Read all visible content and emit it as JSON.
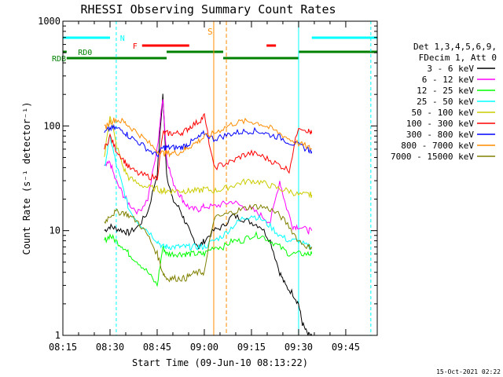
{
  "chart_data": {
    "type": "line",
    "title": "RHESSI Observing Summary Count Rates",
    "xlabel": "Start Time (09-Jun-10 08:13:22)",
    "ylabel": "Count Rate (s⁻¹ detector⁻¹)",
    "yscale": "log",
    "ylim": [
      1,
      1000
    ],
    "xlim_min": [
      8.25,
      9.917
    ],
    "x_ticks": [
      "08:15",
      "08:30",
      "08:45",
      "09:00",
      "09:15",
      "09:30",
      "09:45"
    ],
    "y_ticks": [
      "1",
      "10",
      "100",
      "1000"
    ],
    "legend_header": [
      "Det 1,3,4,5,6,9,",
      "FDecim 1, Att 0"
    ],
    "legend_position": "right",
    "timestamp": "15-Oct-2021 02:22",
    "series": [
      {
        "name": "3 - 6 keV",
        "color": "#000000",
        "x": [
          8.47,
          8.5,
          8.53,
          8.57,
          8.6,
          8.65,
          8.7,
          8.75,
          8.78,
          8.8,
          8.83,
          8.87,
          8.9,
          8.93,
          8.97,
          9.0,
          9.05,
          9.1,
          9.15,
          9.2,
          9.25,
          9.3,
          9.35,
          9.4,
          9.43,
          9.47,
          9.5,
          9.52,
          9.55,
          9.57
        ],
        "y": [
          10,
          11,
          10.5,
          10,
          9.5,
          11,
          15,
          35,
          200,
          35,
          20,
          16,
          12,
          9,
          7,
          8,
          10,
          11,
          14,
          13,
          12,
          11,
          8,
          4,
          3,
          2.5,
          2,
          1.3,
          1,
          1
        ]
      },
      {
        "name": "6 - 12 keV",
        "color": "#ff00ff",
        "x": [
          8.47,
          8.5,
          8.53,
          8.57,
          8.6,
          8.65,
          8.7,
          8.75,
          8.78,
          8.8,
          8.83,
          8.87,
          8.9,
          8.93,
          8.97,
          9.0,
          9.05,
          9.1,
          9.15,
          9.2,
          9.25,
          9.3,
          9.35,
          9.4,
          9.43,
          9.47,
          9.5,
          9.55,
          9.57
        ],
        "y": [
          40,
          45,
          30,
          22,
          18,
          15,
          20,
          60,
          190,
          50,
          30,
          22,
          18,
          16,
          16,
          17,
          17,
          18,
          19,
          17,
          16,
          14,
          12,
          30,
          18,
          11,
          11,
          10,
          10
        ]
      },
      {
        "name": "12 - 25 keV",
        "color": "#00ff00",
        "x": [
          8.47,
          8.5,
          8.53,
          8.57,
          8.6,
          8.65,
          8.7,
          8.75,
          8.78,
          8.8,
          8.83,
          8.87,
          8.9,
          8.93,
          8.97,
          9.0,
          9.05,
          9.1,
          9.15,
          9.2,
          9.25,
          9.3,
          9.35,
          9.4,
          9.45,
          9.5,
          9.55,
          9.57
        ],
        "y": [
          8,
          9,
          8,
          7,
          6,
          5,
          4,
          3,
          7,
          6,
          6,
          6,
          6,
          6,
          6,
          6,
          7,
          7,
          8,
          8,
          9,
          9,
          8,
          7,
          6,
          6,
          6,
          6
        ]
      },
      {
        "name": "25 - 50 keV",
        "color": "#00ffff",
        "x": [
          8.47,
          8.5,
          8.53,
          8.57,
          8.6,
          8.65,
          8.7,
          8.75,
          8.78,
          8.8,
          8.83,
          8.87,
          8.9,
          8.93,
          8.97,
          9.0,
          9.05,
          9.1,
          9.15,
          9.2,
          9.25,
          9.3,
          9.35,
          9.4,
          9.45,
          9.5,
          9.55,
          9.57
        ],
        "y": [
          40,
          80,
          45,
          25,
          16,
          12,
          10,
          8,
          7,
          7,
          7,
          7,
          7,
          7,
          7,
          7,
          8,
          9,
          11,
          13,
          14,
          13,
          11,
          9,
          8,
          8,
          7,
          7
        ]
      },
      {
        "name": "50 - 100 keV",
        "color": "#cccc00",
        "x": [
          8.47,
          8.5,
          8.53,
          8.57,
          8.6,
          8.65,
          8.7,
          8.75,
          8.78,
          8.8,
          8.83,
          8.87,
          8.9,
          8.93,
          8.97,
          9.0,
          9.05,
          9.1,
          9.15,
          9.2,
          9.25,
          9.3,
          9.35,
          9.4,
          9.45,
          9.5,
          9.55,
          9.57
        ],
        "y": [
          50,
          130,
          70,
          40,
          32,
          28,
          26,
          25,
          24,
          24,
          24,
          24,
          24,
          24,
          24,
          25,
          24,
          25,
          27,
          29,
          30,
          29,
          27,
          25,
          24,
          22,
          22,
          22
        ]
      },
      {
        "name": "100 - 300 keV",
        "color": "#ff0000",
        "x": [
          8.47,
          8.5,
          8.53,
          8.57,
          8.6,
          8.65,
          8.7,
          8.75,
          8.78,
          8.8,
          8.83,
          8.87,
          8.9,
          8.93,
          8.97,
          9.0,
          9.05,
          9.1,
          9.15,
          9.2,
          9.25,
          9.3,
          9.35,
          9.4,
          9.45,
          9.5,
          9.55,
          9.57
        ],
        "y": [
          60,
          80,
          60,
          48,
          40,
          35,
          33,
          32,
          85,
          85,
          85,
          85,
          90,
          100,
          110,
          125,
          40,
          43,
          46,
          52,
          55,
          52,
          47,
          42,
          38,
          100,
          90,
          85
        ]
      },
      {
        "name": "300 - 800 keV",
        "color": "#0000ff",
        "x": [
          8.47,
          8.5,
          8.53,
          8.57,
          8.6,
          8.65,
          8.7,
          8.75,
          8.78,
          8.8,
          8.83,
          8.87,
          8.9,
          8.93,
          8.97,
          9.0,
          9.05,
          9.1,
          9.15,
          9.2,
          9.25,
          9.3,
          9.35,
          9.4,
          9.45,
          9.5,
          9.55,
          9.57
        ],
        "y": [
          85,
          95,
          95,
          90,
          80,
          70,
          60,
          52,
          62,
          62,
          62,
          62,
          65,
          70,
          77,
          85,
          75,
          80,
          85,
          88,
          90,
          88,
          82,
          78,
          70,
          65,
          60,
          57
        ]
      },
      {
        "name": "800 - 7000 keV",
        "color": "#ff8c00",
        "x": [
          8.47,
          8.5,
          8.53,
          8.57,
          8.6,
          8.65,
          8.7,
          8.75,
          8.78,
          8.8,
          8.83,
          8.87,
          8.9,
          8.93,
          8.97,
          9.0,
          9.05,
          9.1,
          9.15,
          9.2,
          9.25,
          9.3,
          9.35,
          9.4,
          9.45,
          9.5,
          9.55,
          9.57
        ],
        "y": [
          95,
          110,
          115,
          110,
          100,
          85,
          70,
          58,
          55,
          55,
          55,
          56,
          60,
          65,
          72,
          78,
          85,
          95,
          105,
          110,
          110,
          105,
          95,
          85,
          75,
          68,
          63,
          60
        ]
      },
      {
        "name": "7000 - 15000 keV",
        "color": "#808000",
        "x": [
          8.47,
          8.5,
          8.53,
          8.57,
          8.6,
          8.65,
          8.7,
          8.75,
          8.78,
          8.8,
          8.83,
          8.87,
          8.9,
          8.93,
          8.97,
          9.0,
          9.05,
          9.1,
          9.15,
          9.2,
          9.25,
          9.3,
          9.35,
          9.4,
          9.45,
          9.5,
          9.55,
          9.57
        ],
        "y": [
          12,
          14,
          15,
          15,
          14,
          12,
          9,
          6,
          4,
          3.5,
          3.5,
          3.5,
          3.5,
          3.8,
          4,
          4,
          13,
          14,
          15,
          16,
          17,
          17,
          16,
          14,
          11,
          8,
          7,
          7
        ]
      }
    ],
    "flag_bars": [
      {
        "label": "N",
        "color": "#00ffff",
        "row": 1,
        "segments": [
          [
            8.25,
            8.5
          ],
          [
            9.57,
            9.917
          ]
        ]
      },
      {
        "label": "F",
        "color": "#ff0000",
        "row": 2,
        "segments": [
          [
            8.67,
            8.92
          ],
          [
            9.33,
            9.38
          ]
        ]
      },
      {
        "label": "RD0",
        "color": "#008000",
        "row": 3,
        "segments": [
          [
            8.25,
            8.27
          ],
          [
            8.8,
            9.1
          ],
          [
            9.5,
            9.917
          ]
        ]
      },
      {
        "label": "RDB",
        "color": "#008000",
        "row": 4,
        "segments": [
          [
            8.27,
            8.8
          ],
          [
            9.1,
            9.5
          ]
        ]
      }
    ],
    "saa_marker": {
      "label": "S",
      "color": "#ff8c00",
      "x_solid": 9.05,
      "x_dashed": 9.117
    },
    "night_boundaries": {
      "color": "#00ffff",
      "x_solid": [
        8.25,
        9.5
      ],
      "x_dashed": [
        8.533,
        9.883
      ]
    }
  }
}
